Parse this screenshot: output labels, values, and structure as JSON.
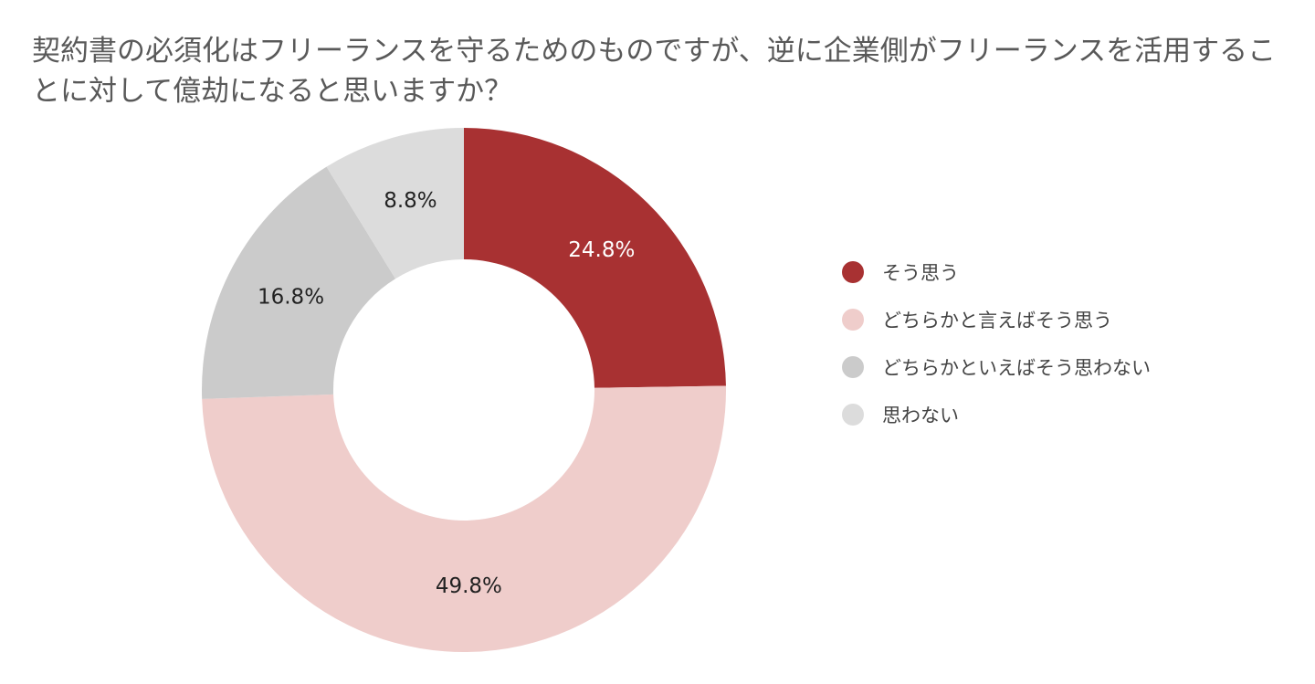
{
  "chart_data": {
    "type": "pie",
    "donut": true,
    "title": "契約書の必須化はフリーランスを守るためのものですが、逆に企業側がフリーランスを活用することに対して億劫になると思いますか？",
    "legend_position": "right",
    "slices": [
      {
        "label": "そう思う",
        "value": 24.8,
        "display": "24.8%",
        "color": "#a83132",
        "label_color": "#ffffff"
      },
      {
        "label": "どちらかと言えばそう思う",
        "value": 49.8,
        "display": "49.8%",
        "color": "#efcdcb",
        "label_color": "#222222"
      },
      {
        "label": "どちらかといえばそう思わない",
        "value": 16.8,
        "display": "16.8%",
        "color": "#cbcbcb",
        "label_color": "#222222"
      },
      {
        "label": "思わない",
        "value": 8.8,
        "display": "8.8%",
        "color": "#dcdcdc",
        "label_color": "#222222"
      }
    ]
  }
}
